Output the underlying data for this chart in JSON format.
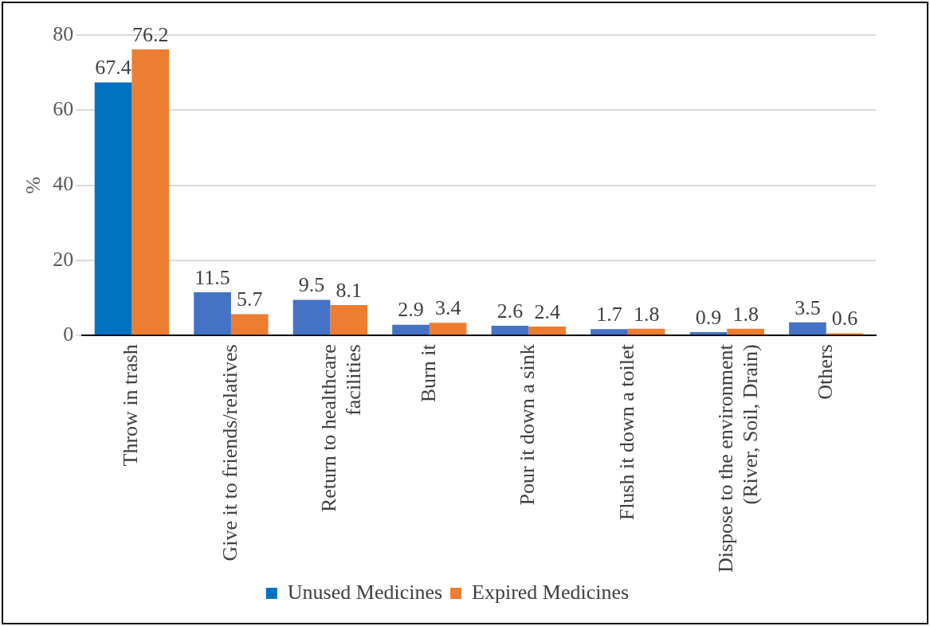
{
  "chart_data": {
    "type": "bar",
    "ylabel": "%",
    "categories": [
      "Throw in trash",
      "Give it to friends/relatives",
      "Return to healthcare facilities",
      "Burn it",
      "Pour it down a sink",
      "Flush it down a toilet",
      "Dispose to the environment (River, Soil, Drain)",
      "Others"
    ],
    "series": [
      {
        "name": "Unused Medicines",
        "color": "#4472c4",
        "colors": [
          "#0070c0",
          "#4472c4",
          "#4472c4",
          "#4472c4",
          "#4472c4",
          "#4472c4",
          "#4472c4",
          "#4472c4"
        ],
        "values": [
          67.4,
          11.5,
          9.5,
          2.9,
          2.6,
          1.7,
          0.9,
          3.5
        ]
      },
      {
        "name": "Expired Medicines",
        "color": "#ed7d31",
        "values": [
          76.2,
          5.7,
          8.1,
          3.4,
          2.4,
          1.8,
          1.8,
          0.6
        ]
      }
    ],
    "ylim": [
      0,
      80
    ],
    "yticks": [
      0,
      20,
      40,
      60,
      80
    ],
    "grid": "y",
    "legend": "bottom",
    "data_labels": true
  }
}
